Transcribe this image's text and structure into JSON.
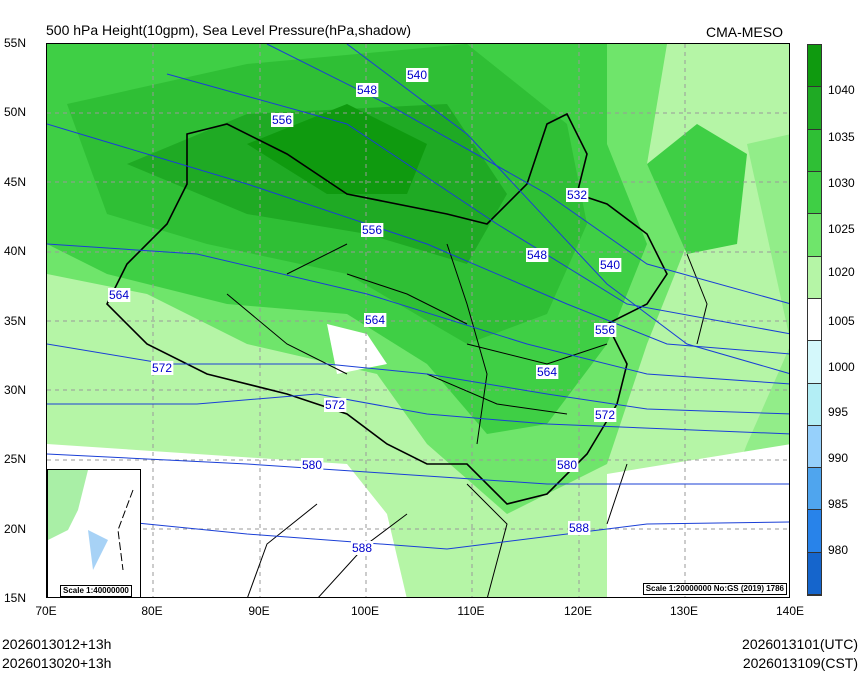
{
  "title": "500 hPa Height(10gpm), Sea Level Pressure(hPa,shadow)",
  "source": "CMA-MESO",
  "lat_labels": [
    "55N",
    "50N",
    "45N",
    "40N",
    "35N",
    "30N",
    "25N",
    "20N",
    "15N"
  ],
  "lon_labels": [
    "70E",
    "80E",
    "90E",
    "100E",
    "110E",
    "120E",
    "130E",
    "140E"
  ],
  "colorbar": {
    "levels": [
      "1040",
      "1035",
      "1030",
      "1025",
      "1020",
      "1005",
      "1000",
      "995",
      "990",
      "985",
      "980"
    ],
    "colors": [
      "#0f9a0f",
      "#1faa24",
      "#2fbf35",
      "#3fcf45",
      "#6fe56b",
      "#b5f5a6",
      "#ffffff",
      "#d4f8fb",
      "#b3eef5",
      "#96d0fb",
      "#4fa5ee",
      "#2883ea",
      "#1565cc"
    ]
  },
  "contour_labels": [
    "540",
    "548",
    "556",
    "532",
    "556",
    "548",
    "540",
    "564",
    "556",
    "564",
    "572",
    "564",
    "572",
    "572",
    "580",
    "580",
    "588",
    "588"
  ],
  "inset_scale": "Scale 1:40000000",
  "map_scale": "Scale 1:20000000 No:GS (2019) 1786",
  "footer": {
    "init_utc": "2026013012+13h",
    "init_cst": "2026013020+13h",
    "valid_utc": "2026013101(UTC)",
    "valid_cst": "2026013109(CST)"
  }
}
